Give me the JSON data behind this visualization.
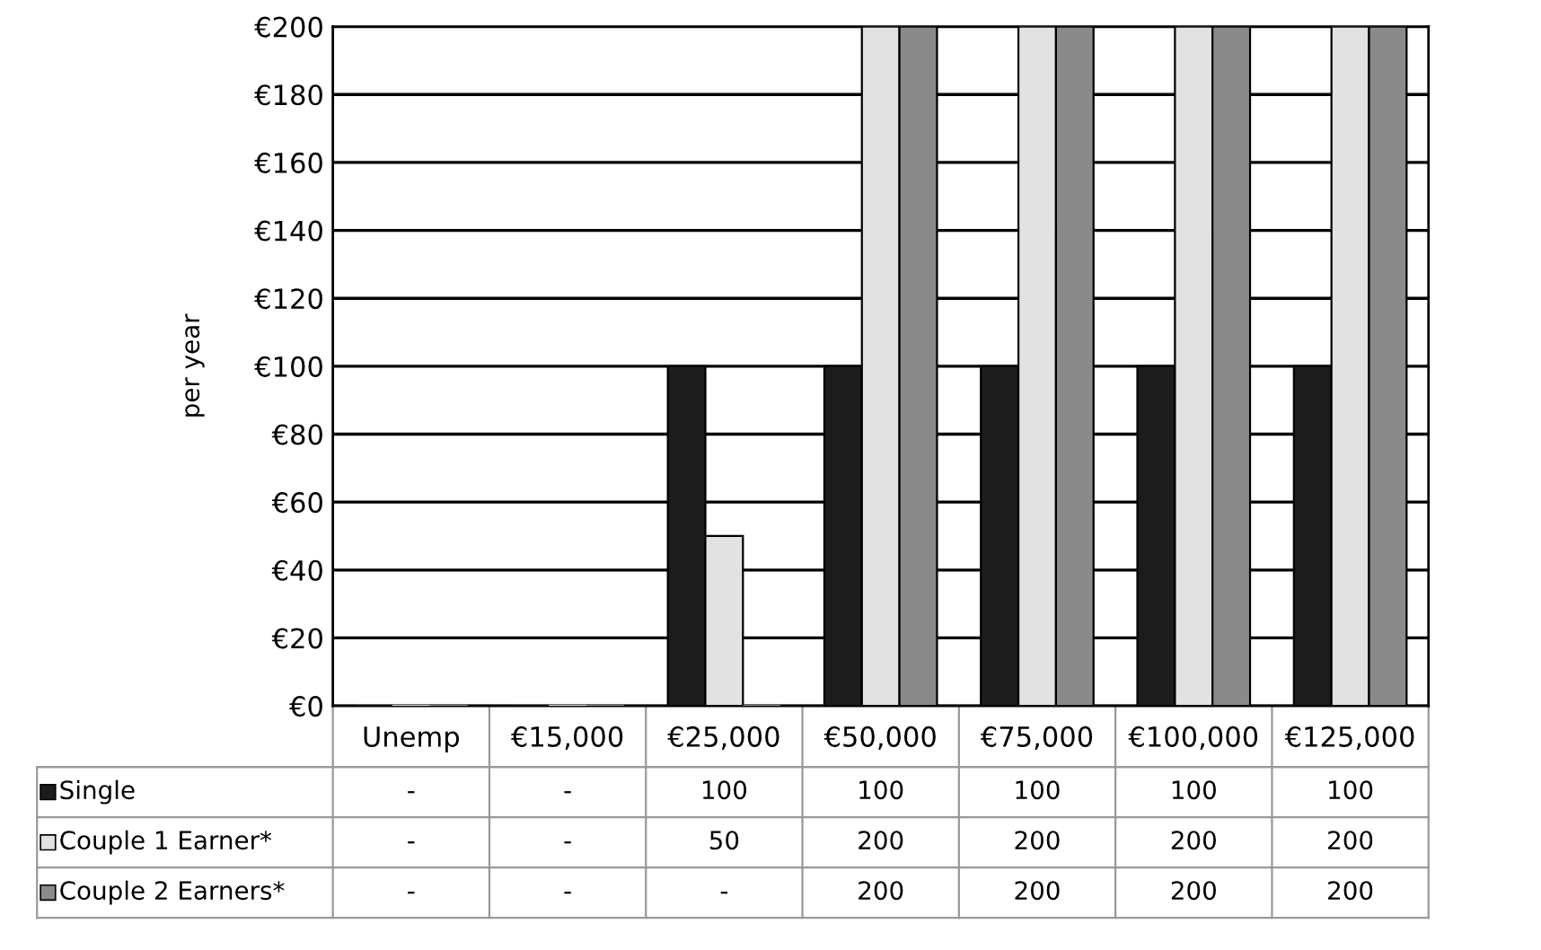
{
  "chart_data": {
    "type": "bar",
    "ylabel": "per year",
    "categories": [
      "Unemp",
      "€15,000",
      "€25,000",
      "€50,000",
      "€75,000",
      "€100,000",
      "€125,000"
    ],
    "series": [
      {
        "name": "Single",
        "color": "#1c1c1c",
        "values": [
          0,
          0,
          100,
          100,
          100,
          100,
          100
        ],
        "value_labels": [
          "-",
          "-",
          "100",
          "100",
          "100",
          "100",
          "100"
        ]
      },
      {
        "name": "Couple 1 Earner*",
        "color": "#e2e2e2",
        "values": [
          0,
          0,
          50,
          200,
          200,
          200,
          200
        ],
        "value_labels": [
          "-",
          "-",
          "50",
          "200",
          "200",
          "200",
          "200"
        ]
      },
      {
        "name": "Couple 2 Earners*",
        "color": "#8a8a8a",
        "values": [
          0,
          0,
          0,
          200,
          200,
          200,
          200
        ],
        "value_labels": [
          "-",
          "-",
          "-",
          "200",
          "200",
          "200",
          "200"
        ]
      }
    ],
    "ylim": [
      0,
      200
    ],
    "yticks": [
      {
        "value": 0,
        "label": "€0"
      },
      {
        "value": 20,
        "label": "€20"
      },
      {
        "value": 40,
        "label": "€40"
      },
      {
        "value": 60,
        "label": "€60"
      },
      {
        "value": 80,
        "label": "€80"
      },
      {
        "value": 100,
        "label": "€100"
      },
      {
        "value": 120,
        "label": "€120"
      },
      {
        "value": 140,
        "label": "€140"
      },
      {
        "value": 160,
        "label": "€160"
      },
      {
        "value": 180,
        "label": "€180"
      },
      {
        "value": 200,
        "label": "€200"
      }
    ],
    "grid": "y",
    "legend": "bottom left"
  }
}
